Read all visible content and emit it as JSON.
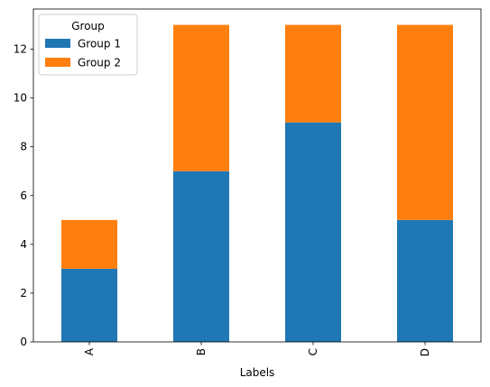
{
  "chart_data": {
    "type": "bar",
    "stacked": true,
    "categories": [
      "A",
      "B",
      "C",
      "D"
    ],
    "series": [
      {
        "name": "Group 1",
        "values": [
          3,
          7,
          9,
          5
        ],
        "color": "#1f77b4"
      },
      {
        "name": "Group 2",
        "values": [
          2,
          6,
          4,
          8
        ],
        "color": "#ff7f0e"
      }
    ],
    "title": "",
    "xlabel": "Labels",
    "ylabel": "",
    "ylim": [
      0,
      13.65
    ],
    "yticks": [
      0,
      2,
      4,
      6,
      8,
      10,
      12
    ],
    "legend": {
      "title": "Group",
      "placement": "top-left"
    },
    "grid": false
  }
}
